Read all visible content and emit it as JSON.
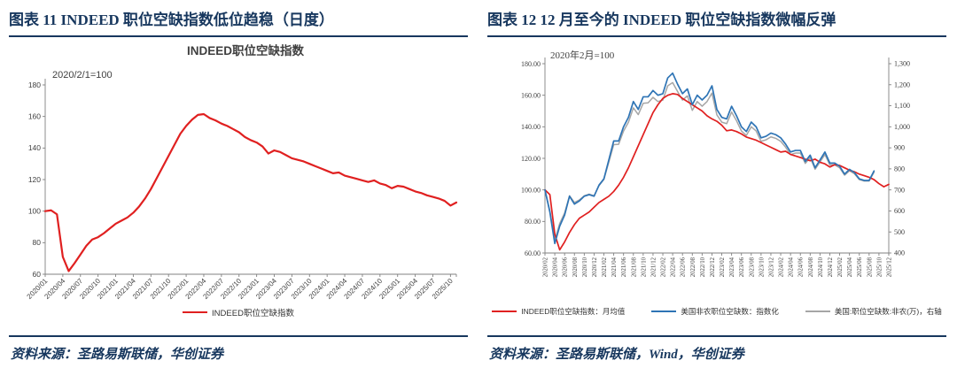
{
  "figures": [
    {
      "header": "图表 11  INDEED 职位空缺指数低位趋稳（日度）",
      "source": "资料来源：圣路易斯联储，华创证券"
    },
    {
      "header": "图表 12  12 月至今的 INDEED 职位空缺指数微幅反弹",
      "source": "资料来源：圣路易斯联储，Wind，华创证券"
    }
  ],
  "colors": {
    "accent": "#17375e",
    "red": "#e02020",
    "blue": "#2e74b5",
    "gray": "#a6a6a6"
  },
  "chart_data": [
    {
      "id": "indeed-vacancy-index-daily",
      "type": "line",
      "title": "INDEED职位空缺指数",
      "annotation": "2020/2/1=100",
      "months_total": 70,
      "x_label_step": 3,
      "x_labels": [
        "2020/01",
        "2020/04",
        "2020/07",
        "2020/10",
        "2021/01",
        "2021/04",
        "2021/07",
        "2021/10",
        "2022/01",
        "2022/04",
        "2022/07",
        "2022/10",
        "2023/01",
        "2023/04",
        "2023/07",
        "2023/10",
        "2024/01",
        "2024/04",
        "2024/07",
        "2024/10",
        "2025/01",
        "2025/04",
        "2025/07",
        "2025/10"
      ],
      "ylim_left": [
        60,
        180
      ],
      "y_ticks_left": [
        {
          "v": 180,
          "label": "180"
        },
        {
          "v": 160,
          "label": "160"
        },
        {
          "v": 140,
          "label": "140"
        },
        {
          "v": 120,
          "label": "120"
        },
        {
          "v": 100,
          "label": "100"
        },
        {
          "v": 80,
          "label": "80"
        },
        {
          "v": 60,
          "label": "60"
        }
      ],
      "legend_position": "bottom",
      "series": [
        {
          "name": "INDEED职位空缺指数",
          "color": "#e02020",
          "axis": "left",
          "width": 2.2,
          "values": [
            100,
            100.5,
            98,
            71,
            62,
            67,
            72.5,
            78,
            82,
            83.5,
            86,
            89,
            92,
            94,
            96,
            99,
            103,
            108,
            114,
            121,
            128,
            135,
            142,
            149,
            154,
            158,
            161,
            161.5,
            159,
            157.5,
            155.5,
            154,
            152,
            150,
            147,
            145,
            143.5,
            141,
            136.5,
            138.5,
            137.5,
            135.5,
            133.5,
            132.5,
            131.5,
            130,
            128.5,
            127,
            125.5,
            124,
            124.5,
            122.5,
            121.5,
            120.5,
            119.5,
            118.5,
            119.5,
            117.5,
            116.5,
            114.5,
            116,
            115.5,
            114,
            112.5,
            111.5,
            110,
            109,
            108,
            106.5,
            103.5,
            105.5
          ]
        }
      ]
    },
    {
      "id": "indeed-vs-us-nonfarm-openings",
      "type": "line",
      "title": "",
      "annotation": "2020年2月=100",
      "months_total": 70,
      "x_label_step": 2,
      "x_labels": [
        "2020/02",
        "2020/04",
        "2020/06",
        "2020/08",
        "2020/10",
        "2020/12",
        "2021/02",
        "2021/04",
        "2021/06",
        "2021/08",
        "2021/10",
        "2021/12",
        "2022/02",
        "2022/04",
        "2022/06",
        "2022/08",
        "2022/10",
        "2022/12",
        "2023/02",
        "2023/04",
        "2023/06",
        "2023/08",
        "2023/10",
        "2023/12",
        "2024/02",
        "2024/04",
        "2024/06",
        "2024/08",
        "2024/10",
        "2024/12",
        "2025/02",
        "2025/04",
        "2025/06",
        "2025/08",
        "2025/10",
        "2025/12"
      ],
      "ylim_left": [
        60,
        180
      ],
      "ylim_right": [
        400,
        1300
      ],
      "y_ticks_left": [
        {
          "v": 180,
          "label": "180.00"
        },
        {
          "v": 160,
          "label": "160.00"
        },
        {
          "v": 140,
          "label": "140.00"
        },
        {
          "v": 120,
          "label": "120.00"
        },
        {
          "v": 100,
          "label": "100.00"
        },
        {
          "v": 80,
          "label": "80.00"
        },
        {
          "v": 60,
          "label": "60.00"
        }
      ],
      "y_ticks_right": [
        {
          "v": 1300,
          "label": "1,300"
        },
        {
          "v": 1200,
          "label": "1,200"
        },
        {
          "v": 1100,
          "label": "1,100"
        },
        {
          "v": 1000,
          "label": "1,000"
        },
        {
          "v": 900,
          "label": "900"
        },
        {
          "v": 800,
          "label": "800"
        },
        {
          "v": 700,
          "label": "700"
        },
        {
          "v": 600,
          "label": "600"
        },
        {
          "v": 500,
          "label": "500"
        },
        {
          "v": 400,
          "label": "400"
        }
      ],
      "legend_position": "bottom",
      "series": [
        {
          "name": "INDEED职位空缺指数：月均值",
          "color": "#e02020",
          "axis": "left",
          "width": 1.7,
          "values": [
            100,
            97,
            72,
            62,
            67,
            73,
            78,
            82,
            84,
            86,
            89,
            92,
            94,
            96,
            99,
            103,
            108,
            114,
            121,
            128,
            135,
            142,
            149,
            154,
            158,
            160,
            161,
            160.5,
            158,
            156,
            154,
            152,
            150,
            147,
            145,
            143.5,
            141,
            137.5,
            138,
            137,
            135.5,
            133.5,
            132.5,
            131.5,
            130,
            128.5,
            127,
            125.5,
            124,
            124.5,
            122.5,
            121.5,
            120.5,
            119.5,
            118.5,
            119.5,
            117.5,
            116.5,
            114.5,
            116,
            115.5,
            114,
            112.5,
            111.5,
            110,
            109,
            108,
            106.5,
            104,
            102,
            103.5
          ]
        },
        {
          "name": "美国非农职位空缺数：指数化",
          "color": "#2e74b5",
          "axis": "left",
          "width": 1.7,
          "values": [
            100,
            86,
            66,
            77,
            84,
            96,
            91,
            93,
            96,
            97,
            96,
            103,
            107,
            119,
            131,
            131,
            140,
            146,
            156,
            151,
            159,
            159,
            163,
            160,
            161,
            171,
            174,
            167,
            161,
            164,
            154,
            160,
            157,
            160,
            166,
            151,
            146,
            145,
            153,
            147,
            140,
            137,
            143,
            140,
            133,
            134,
            136,
            135,
            133,
            129,
            124,
            125,
            125,
            118,
            122,
            114,
            119,
            124,
            117,
            117,
            115,
            110,
            113,
            111,
            107,
            106,
            106,
            112
          ]
        },
        {
          "name": "美国:职位空缺数:非农(万)，右轴",
          "color": "#a6a6a6",
          "axis": "right",
          "width": 1.5,
          "values": [
            700,
            600,
            460,
            540,
            590,
            672,
            640,
            652,
            672,
            680,
            672,
            720,
            750,
            832,
            915,
            917,
            980,
            1022,
            1090,
            1058,
            1112,
            1114,
            1140,
            1120,
            1127,
            1195,
            1210,
            1168,
            1127,
            1147,
            1078,
            1120,
            1098,
            1120,
            1160,
            1057,
            1022,
            1015,
            1070,
            1029,
            980,
            959,
            1000,
            980,
            931,
            938,
            952,
            945,
            931,
            903,
            868,
            875,
            875,
            826,
            854,
            798,
            833,
            868,
            819,
            819,
            805,
            770,
            791,
            777,
            749,
            742,
            742,
            784
          ]
        }
      ]
    }
  ]
}
